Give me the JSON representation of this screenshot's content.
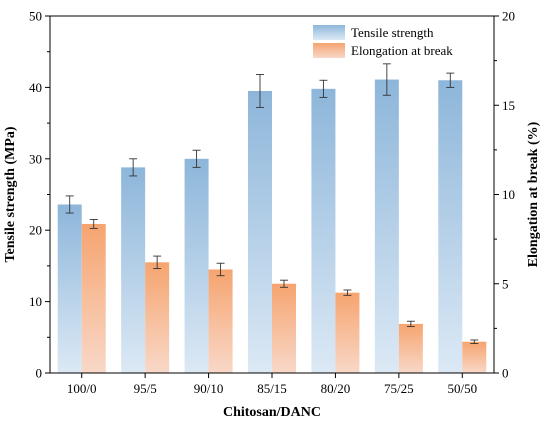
{
  "chart_data": {
    "type": "bar",
    "categories": [
      "100/0",
      "95/5",
      "90/10",
      "85/15",
      "80/20",
      "75/25",
      "50/50"
    ],
    "xlabel": "Chitosan/DANC",
    "ylabel": "Tensile strength (MPa)",
    "y2label": "Elongation at break (%)",
    "ylim": [
      0,
      50
    ],
    "y2lim": [
      0,
      20
    ],
    "yticks": [
      "0",
      "10",
      "20",
      "30",
      "40",
      "50"
    ],
    "y2ticks": [
      "0",
      "5",
      "10",
      "15",
      "20"
    ],
    "legend_position": "top-right",
    "grid": false,
    "series": [
      {
        "name": "Tensile strength",
        "axis": "left",
        "color": "#8fb8dc",
        "values": [
          23.6,
          28.8,
          30.0,
          39.5,
          39.8,
          41.1,
          41.0
        ],
        "errors": [
          1.2,
          1.2,
          1.2,
          2.3,
          1.2,
          2.2,
          1.0
        ]
      },
      {
        "name": "Elongation at break",
        "axis": "right",
        "color": "#f4a473",
        "values": [
          8.35,
          6.2,
          5.8,
          5.0,
          4.5,
          2.75,
          1.75
        ],
        "errors": [
          0.25,
          0.35,
          0.35,
          0.2,
          0.15,
          0.15,
          0.1
        ]
      }
    ]
  }
}
